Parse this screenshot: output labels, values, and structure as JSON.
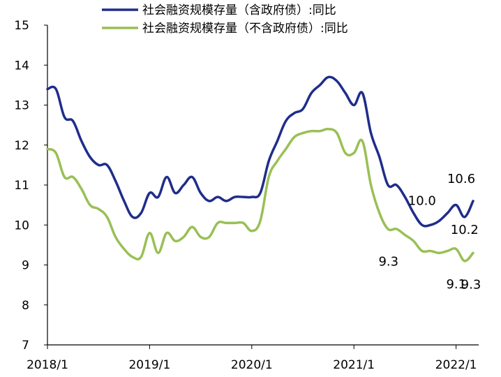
{
  "chart_data": {
    "type": "line",
    "ylim": [
      7,
      15
    ],
    "yticks": [
      "7",
      "8",
      "9",
      "10",
      "11",
      "12",
      "13",
      "14",
      "15"
    ],
    "xticks": [
      "2018/1",
      "2019/1",
      "2020/1",
      "2021/1",
      "2022/1"
    ],
    "x": [
      "2018/1",
      "2018/2",
      "2018/3",
      "2018/4",
      "2018/5",
      "2018/6",
      "2018/7",
      "2018/8",
      "2018/9",
      "2018/10",
      "2018/11",
      "2018/12",
      "2019/1",
      "2019/2",
      "2019/3",
      "2019/4",
      "2019/5",
      "2019/6",
      "2019/7",
      "2019/8",
      "2019/9",
      "2019/10",
      "2019/11",
      "2019/12",
      "2020/1",
      "2020/2",
      "2020/3",
      "2020/4",
      "2020/5",
      "2020/6",
      "2020/7",
      "2020/8",
      "2020/9",
      "2020/10",
      "2020/11",
      "2020/12",
      "2021/1",
      "2021/2",
      "2021/3",
      "2021/4",
      "2021/5",
      "2021/6",
      "2021/7",
      "2021/8",
      "2021/9",
      "2021/10",
      "2021/11",
      "2021/12",
      "2022/1",
      "2022/2",
      "2022/3"
    ],
    "series": [
      {
        "name": "社会融资规模存量（含政府债）:同比",
        "color": "#1f2d8a",
        "values": [
          13.4,
          13.4,
          12.7,
          12.6,
          12.1,
          11.7,
          11.5,
          11.5,
          11.1,
          10.6,
          10.2,
          10.3,
          10.8,
          10.7,
          11.2,
          10.8,
          11.0,
          11.2,
          10.8,
          10.6,
          10.7,
          10.6,
          10.7,
          10.7,
          10.7,
          10.8,
          11.6,
          12.1,
          12.6,
          12.8,
          12.9,
          13.3,
          13.5,
          13.7,
          13.6,
          13.3,
          13.0,
          13.3,
          12.3,
          11.7,
          11.0,
          11.0,
          10.7,
          10.3,
          10.0,
          10.0,
          10.1,
          10.3,
          10.5,
          10.2,
          10.6
        ]
      },
      {
        "name": "社会融资规模存量（不含政府债）:同比",
        "color": "#99c055",
        "values": [
          11.9,
          11.8,
          11.2,
          11.2,
          10.9,
          10.5,
          10.4,
          10.2,
          9.7,
          9.4,
          9.2,
          9.2,
          9.8,
          9.3,
          9.8,
          9.6,
          9.7,
          9.95,
          9.7,
          9.7,
          10.05,
          10.05,
          10.05,
          10.05,
          9.85,
          10.1,
          11.2,
          11.6,
          11.9,
          12.2,
          12.3,
          12.35,
          12.35,
          12.4,
          12.3,
          11.8,
          11.8,
          12.1,
          11.0,
          10.3,
          9.9,
          9.9,
          9.75,
          9.6,
          9.35,
          9.35,
          9.3,
          9.35,
          9.4,
          9.1,
          9.3
        ]
      }
    ],
    "data_labels": [
      {
        "text": "10.6",
        "series": 0,
        "index": 50
      },
      {
        "text": "10.0",
        "series": 0,
        "index": 44
      },
      {
        "text": "10.2",
        "series": 0,
        "index": 49
      },
      {
        "text": "9.3",
        "series": 1,
        "index": 44
      },
      {
        "text": "9.1",
        "series": 1,
        "index": 49
      },
      {
        "text": "9.3",
        "series": 1,
        "index": 50
      }
    ],
    "legend": "top",
    "grid": false
  }
}
